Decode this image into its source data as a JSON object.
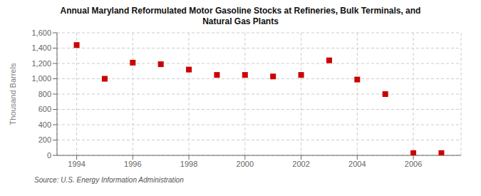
{
  "chart_data": {
    "type": "scatter",
    "title": "Annual Maryland Reformulated Motor Gasoline Stocks at Refineries, Bulk Terminals, and\nNatural Gas Plants",
    "ylabel": "Thousand Barrels",
    "annotation": "Source: U.S. Energy Information Administration",
    "x": [
      1994,
      1995,
      1996,
      1997,
      1998,
      1999,
      2000,
      2001,
      2002,
      2003,
      2004,
      2005,
      2006,
      2007
    ],
    "values": [
      1440,
      1000,
      1210,
      1190,
      1120,
      1050,
      1050,
      1030,
      1050,
      1240,
      990,
      800,
      30,
      30
    ],
    "color": "#cc0000",
    "marker": "square",
    "xlim": [
      1993.3,
      2007.7
    ],
    "xticks": [
      1994,
      1996,
      1998,
      2000,
      2002,
      2004,
      2006
    ],
    "ylim": [
      0,
      1600
    ],
    "yticks": [
      0,
      200,
      400,
      600,
      800,
      {
        "value": 1000,
        "label": "1,000"
      },
      {
        "value": 1200,
        "label": "1,200"
      },
      {
        "value": 1400,
        "label": "1,400"
      },
      {
        "value": 1600,
        "label": "1,600"
      }
    ],
    "grid": true
  }
}
